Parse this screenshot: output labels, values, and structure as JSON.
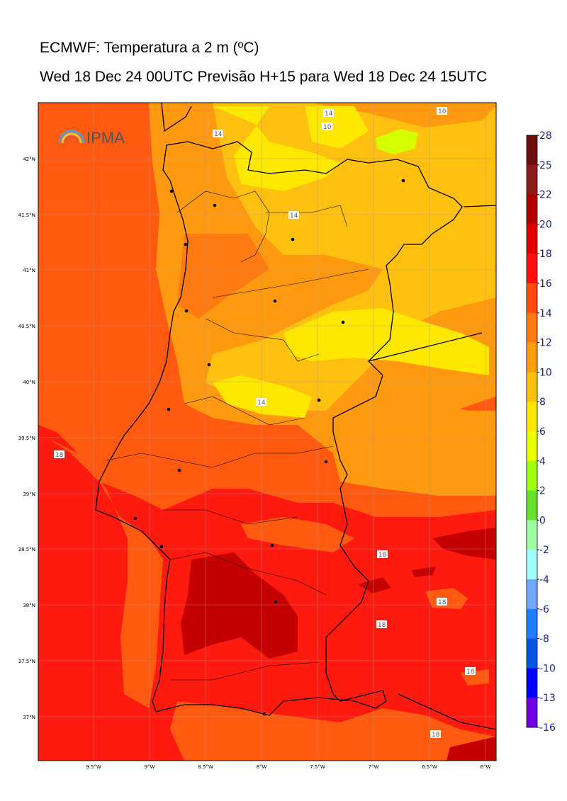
{
  "header": {
    "title": "ECMWF: Temperatura a 2 m (ºC)",
    "subtitle": "Wed 18 Dec 24 00UTC Previsão H+15 para Wed 18 Dec 24 15UTC"
  },
  "logo": {
    "text": "IPMA"
  },
  "axes": {
    "lat_ticks": [
      "42°N",
      "41.5°N",
      "41°N",
      "40.5°N",
      "40°N",
      "39.5°N",
      "39°N",
      "38.5°N",
      "38°N",
      "37.5°N",
      "37°N"
    ],
    "lon_ticks": [
      "9.5°W",
      "9°W",
      "8.5°W",
      "8°W",
      "7.5°W",
      "7°W",
      "6.5°W",
      "6°W"
    ]
  },
  "colorbar": {
    "labels": [
      "28",
      "25",
      "22",
      "20",
      "18",
      "16",
      "14",
      "12",
      "10",
      "8",
      "6",
      "4",
      "2",
      "0",
      "-2",
      "-4",
      "-6",
      "-8",
      "-10",
      "-13",
      "-16"
    ],
    "colors": [
      "#6e0d0d",
      "#8b1a1a",
      "#b20000",
      "#e00000",
      "#ff1010",
      "#ff4a10",
      "#ff7a10",
      "#ff9d10",
      "#ffc010",
      "#ffe800",
      "#e9ff00",
      "#9ffe10",
      "#68e030",
      "#a0ffa0",
      "#a0ffff",
      "#70a8ff",
      "#1e7eff",
      "#0058e0",
      "#0000ff",
      "#7000e0",
      "#dd00ff"
    ]
  },
  "contour_labels": [
    "14",
    "10",
    "14",
    "10",
    "14",
    "14",
    "18",
    "18",
    "18",
    "18",
    "18",
    "18"
  ],
  "zone_colors": {
    "sea": "#ff5a10",
    "band14": "#ff9a10",
    "band12": "#ffc010",
    "band10": "#ffe800",
    "band8": "#d4ff00",
    "south18": "#ff1a10",
    "hot20": "#c50000"
  }
}
